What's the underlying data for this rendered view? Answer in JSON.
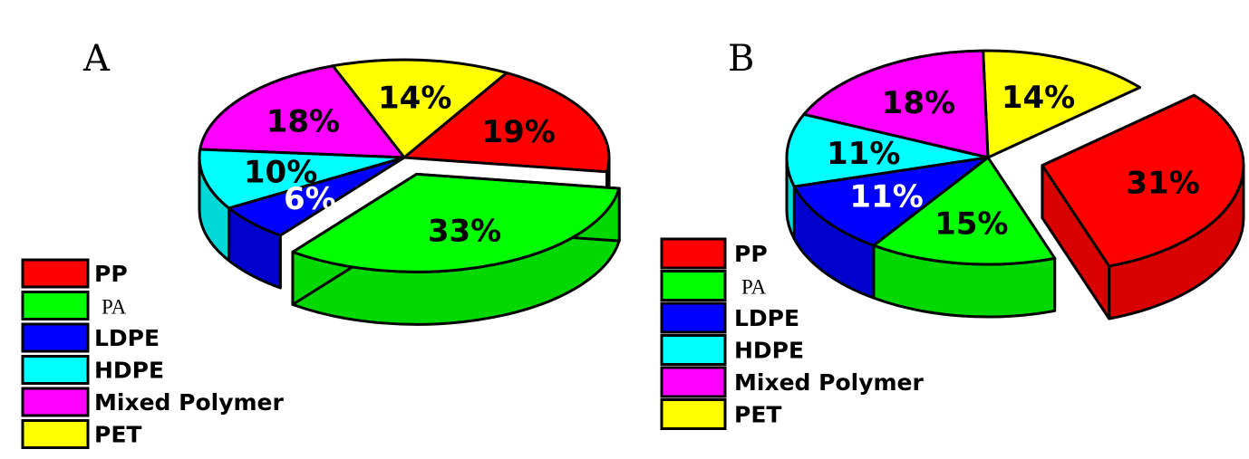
{
  "chart_data": [
    {
      "type": "pie",
      "panel_label": "A",
      "slices": [
        {
          "label": "PP",
          "value": 19,
          "text": "19%",
          "color": "#ff0000"
        },
        {
          "label": "PA",
          "value": 33,
          "text": "33%",
          "color": "#00ff00"
        },
        {
          "label": "LDPE",
          "value": 6,
          "text": "6%",
          "color": "#0000ff"
        },
        {
          "label": "HDPE",
          "value": 10,
          "text": "10%",
          "color": "#00ffff"
        },
        {
          "label": "Mixed Polymer",
          "value": 18,
          "text": "18%",
          "color": "#ff00ff"
        },
        {
          "label": "PET",
          "value": 14,
          "text": "14%",
          "color": "#ffff00"
        }
      ],
      "exploded": [
        "PA"
      ],
      "legend": [
        "PP",
        "PA",
        "LDPE",
        "HDPE",
        "Mixed Polymer",
        "PET"
      ],
      "legend_position": "bottom-left",
      "style": "3D"
    },
    {
      "type": "pie",
      "panel_label": "B",
      "slices": [
        {
          "label": "PP",
          "value": 31,
          "text": "31%",
          "color": "#ff0000"
        },
        {
          "label": "PA",
          "value": 15,
          "text": "15%",
          "color": "#00ff00"
        },
        {
          "label": "LDPE",
          "value": 11,
          "text": "11%",
          "color": "#0000ff"
        },
        {
          "label": "HDPE",
          "value": 11,
          "text": "11%",
          "color": "#00ffff"
        },
        {
          "label": "Mixed Polymer",
          "value": 18,
          "text": "18%",
          "color": "#ff00ff"
        },
        {
          "label": "PET",
          "value": 14,
          "text": "14%",
          "color": "#ffff00"
        }
      ],
      "exploded": [
        "PP"
      ],
      "legend": [
        "PP",
        "PA",
        "LDPE",
        "HDPE",
        "Mixed Polymer",
        "PET"
      ],
      "legend_position": "bottom-left",
      "style": "3D"
    }
  ]
}
